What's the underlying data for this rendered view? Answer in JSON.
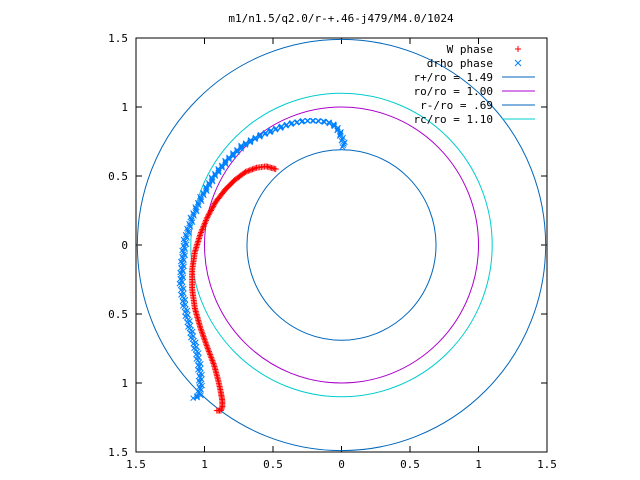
{
  "chart_data": {
    "type": "scatter",
    "title": "m1/n1.5/q2.0/r-+.46-j479/M4.0/1024",
    "xlabel": "",
    "ylabel": "",
    "xlim": [
      -1.5,
      1.5
    ],
    "ylim": [
      -1.5,
      1.5
    ],
    "x_tick_labels": [
      "1.5",
      "1",
      "0.5",
      "0",
      "0.5",
      "1",
      "1.5"
    ],
    "y_tick_labels": [
      "1.5",
      "1",
      "0.5",
      "0",
      "0.5",
      "1",
      "1.5"
    ],
    "grid": false,
    "legend_position": "top-right",
    "series": [
      {
        "name": "W phase",
        "kind": "points",
        "marker": "+",
        "color": "#ff0000",
        "x": [
          -0.48,
          -0.55,
          -0.62,
          -0.7,
          -0.78,
          -0.85,
          -0.92,
          -0.98,
          -1.03,
          -1.07,
          -1.09,
          -1.09,
          -1.07,
          -1.03,
          -0.98,
          -0.93,
          -0.9,
          -0.88,
          -0.87,
          -0.87,
          -0.88,
          -0.91
        ],
        "y": [
          0.55,
          0.57,
          0.56,
          0.53,
          0.47,
          0.4,
          0.31,
          0.2,
          0.08,
          -0.05,
          -0.18,
          -0.32,
          -0.46,
          -0.6,
          -0.74,
          -0.87,
          -0.98,
          -1.07,
          -1.13,
          -1.17,
          -1.2,
          -1.2
        ]
      },
      {
        "name": "drho phase",
        "kind": "points",
        "marker": "x",
        "color": "#0080ff",
        "x": [
          0.02,
          0.0,
          -0.04,
          -0.1,
          -0.18,
          -0.27,
          -0.37,
          -0.48,
          -0.6,
          -0.72,
          -0.83,
          -0.93,
          -1.02,
          -1.09,
          -1.14,
          -1.16,
          -1.17,
          -1.15,
          -1.12,
          -1.09,
          -1.06,
          -1.04,
          -1.03,
          -1.03,
          -1.04,
          -1.07
        ],
        "y": [
          0.71,
          0.79,
          0.86,
          0.89,
          0.9,
          0.9,
          0.88,
          0.84,
          0.79,
          0.72,
          0.62,
          0.5,
          0.35,
          0.2,
          0.04,
          -0.12,
          -0.28,
          -0.42,
          -0.55,
          -0.66,
          -0.76,
          -0.86,
          -0.95,
          -1.03,
          -1.09,
          -1.11
        ]
      },
      {
        "name": "r+/ro = 1.49",
        "kind": "circle",
        "r": 1.49,
        "color": "#0066bb"
      },
      {
        "name": "ro/ro = 1.00",
        "kind": "circle",
        "r": 1.0,
        "color": "#aa00cc"
      },
      {
        "name": "r-/ro = .69",
        "kind": "circle",
        "r": 0.69,
        "color": "#0066bb"
      },
      {
        "name": "rc/ro = 1.10",
        "kind": "circle",
        "r": 1.1,
        "color": "#00cccc"
      }
    ]
  }
}
